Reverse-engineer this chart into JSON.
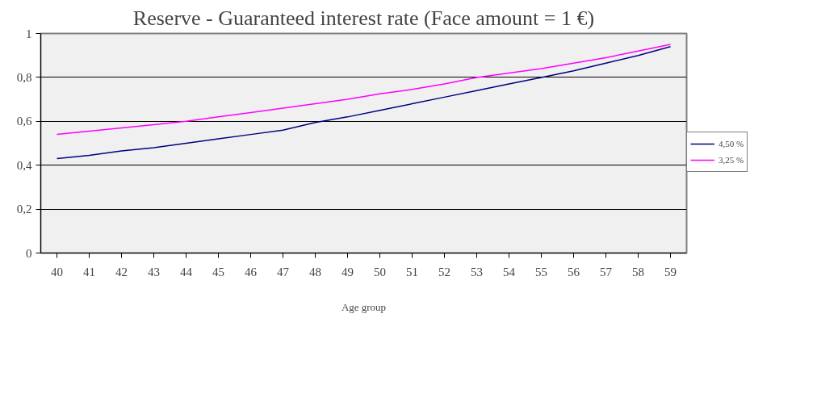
{
  "chart_data": {
    "type": "line",
    "title": "Reserve - Guaranteed interest rate (Face amount = 1 €)",
    "xlabel": "Age group",
    "categories": [
      "40",
      "41",
      "42",
      "43",
      "44",
      "45",
      "46",
      "47",
      "48",
      "49",
      "50",
      "51",
      "52",
      "53",
      "54",
      "55",
      "56",
      "57",
      "58",
      "59"
    ],
    "series": [
      {
        "name": "4,50 %",
        "color": "#000080",
        "values": [
          0.43,
          0.445,
          0.465,
          0.48,
          0.5,
          0.52,
          0.54,
          0.56,
          0.595,
          0.62,
          0.65,
          0.68,
          0.71,
          0.74,
          0.77,
          0.8,
          0.83,
          0.865,
          0.9,
          0.94
        ]
      },
      {
        "name": "3,25 %",
        "color": "#ff00ff",
        "values": [
          0.54,
          0.555,
          0.57,
          0.585,
          0.6,
          0.62,
          0.64,
          0.66,
          0.68,
          0.7,
          0.725,
          0.745,
          0.77,
          0.8,
          0.82,
          0.84,
          0.865,
          0.89,
          0.92,
          0.95
        ]
      }
    ],
    "ylim": [
      0,
      1
    ],
    "yticks": [
      0,
      {
        "value": 0.2,
        "label": "0,2"
      },
      {
        "value": 0.4,
        "label": "0,4"
      },
      {
        "value": 0.6,
        "label": "0,6"
      },
      {
        "value": 0.8,
        "label": "0,8"
      },
      1
    ],
    "grid": "y",
    "legend": "right",
    "marker": "none",
    "line_style": "solid"
  }
}
